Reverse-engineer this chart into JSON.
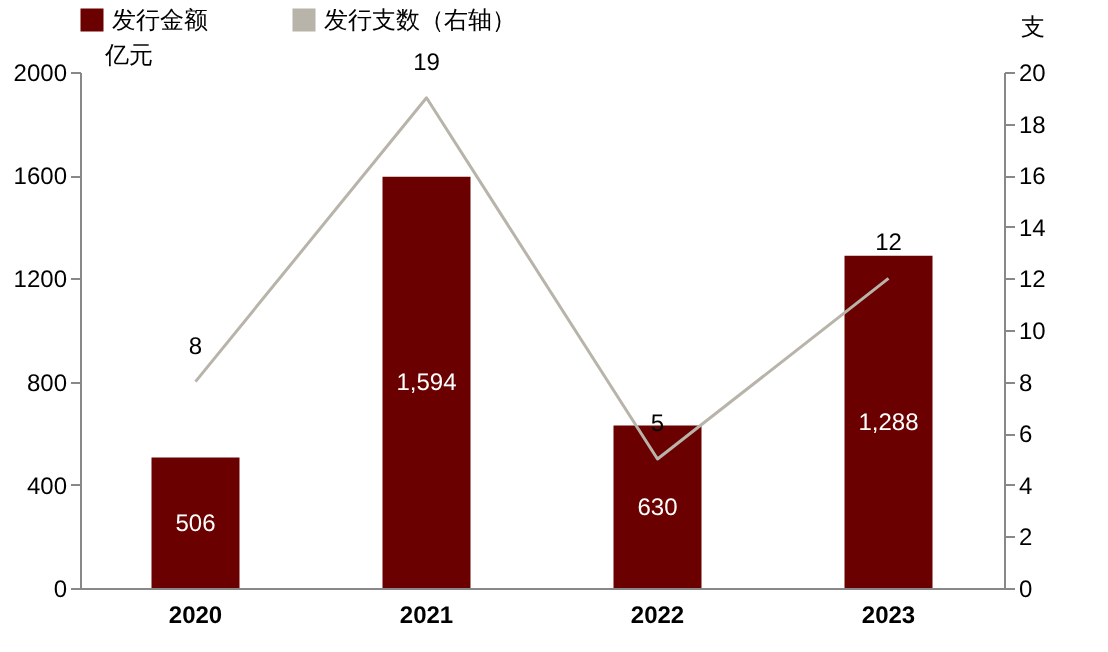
{
  "chart_data": {
    "type": "bar",
    "categories": [
      "2020",
      "2021",
      "2022",
      "2023"
    ],
    "series": [
      {
        "name": "发行金额",
        "color": "#6b0000",
        "values": [
          506,
          1594,
          630,
          1288
        ],
        "value_labels": [
          "506",
          "1,594",
          "630",
          "1,288"
        ]
      },
      {
        "name": "发行支数（右轴）",
        "type": "line",
        "axis": "y2",
        "color": "#b8b4aa",
        "values": [
          8,
          19,
          5,
          12
        ],
        "value_labels": [
          "8",
          "19",
          "5",
          "12"
        ]
      }
    ],
    "ylabel": "亿元",
    "y2label": "支",
    "ylim": [
      0,
      2000
    ],
    "yticks": [
      0,
      400,
      800,
      1200,
      1600,
      2000
    ],
    "y2lim": [
      0,
      20
    ],
    "y2ticks": [
      0,
      2,
      4,
      6,
      8,
      10,
      12,
      14,
      16,
      18,
      20
    ],
    "legend": "top",
    "grid": false
  }
}
